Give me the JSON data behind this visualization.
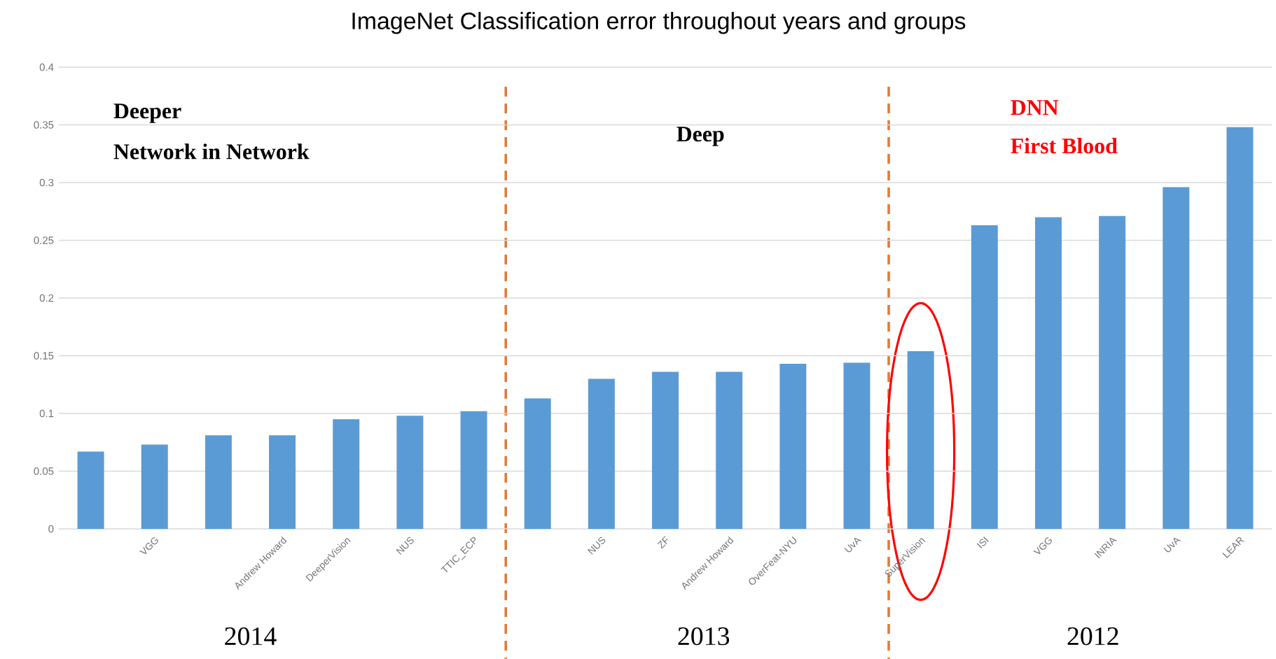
{
  "chart_data": {
    "type": "bar",
    "title": "ImageNet Classification error throughout years and groups",
    "categories": [
      null,
      "VGG",
      null,
      "Andrew Howard",
      "DeeperVision",
      "NUS",
      "TTIC_ECP",
      null,
      "NUS",
      "ZF",
      "Andrew Howard",
      "OverFeat-NYU",
      "UvA",
      "SuperVision",
      "ISI",
      "VGG",
      "INRIA",
      "UvA",
      "LEAR"
    ],
    "values": [
      0.067,
      0.073,
      0.081,
      0.081,
      0.095,
      0.098,
      0.102,
      0.113,
      0.13,
      0.136,
      0.136,
      0.143,
      0.144,
      0.154,
      0.263,
      0.27,
      0.271,
      0.296,
      0.348
    ],
    "color": "#5b9bd5",
    "ylim": [
      0,
      0.4
    ],
    "yticks": [
      0,
      0.05,
      0.1,
      0.15,
      0.2,
      0.25,
      0.3,
      0.35,
      0.4
    ],
    "grid": "y",
    "annotations": [
      "Deeper",
      "Network in Network",
      "Deep",
      "DNN",
      "First Blood",
      "2014",
      "2013",
      "2012"
    ]
  }
}
